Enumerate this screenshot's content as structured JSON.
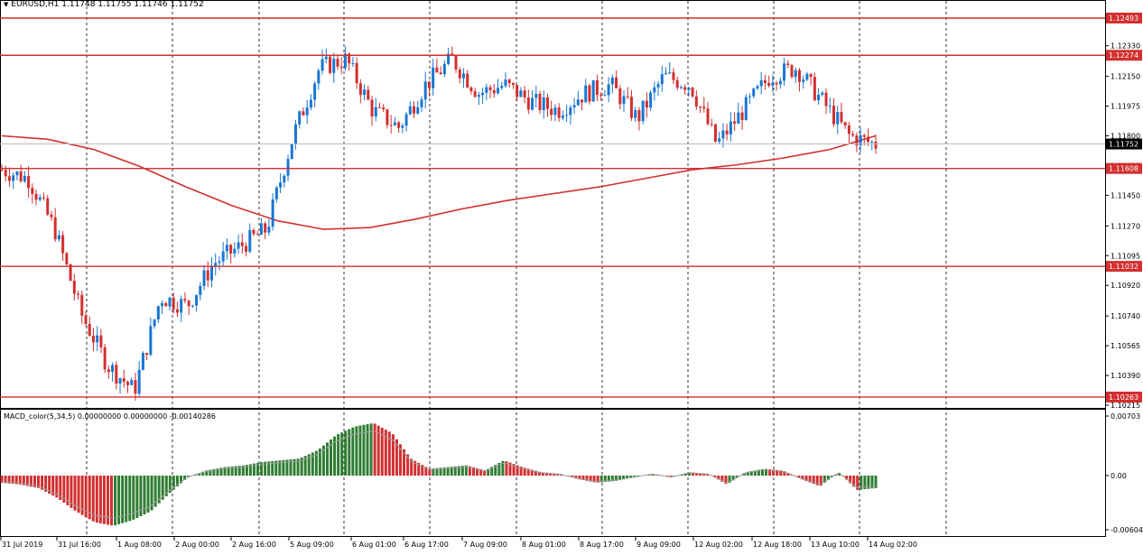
{
  "header": {
    "arrow": "▼",
    "symbol": "EURUSD,H1",
    "ohlc": "1.11748 1.11755 1.11746 1.11752"
  },
  "indicator_header": "MACD_color(5,34,5) 0.00000000 0.00000000 -0.00140286",
  "chart_data": [
    {
      "type": "candlestick",
      "symbol": "EURUSD",
      "timeframe": "H1",
      "ylim": [
        1.10215,
        1.12493
      ],
      "y_ticks": [
        "1.12330",
        "1.12150",
        "1.11975",
        "1.11800",
        "1.11625",
        "1.11450",
        "1.11270",
        "1.11095",
        "1.10920",
        "1.10740",
        "1.10565",
        "1.10390",
        "1.10215"
      ],
      "x_ticks": [
        "31 Jul 2019",
        "31 Jul 16:00",
        "1 Aug 08:00",
        "2 Aug 00:00",
        "2 Aug 16:00",
        "5 Aug 09:00",
        "6 Aug 01:00",
        "6 Aug 17:00",
        "7 Aug 09:00",
        "8 Aug 01:00",
        "8 Aug 17:00",
        "9 Aug 09:00",
        "12 Aug 02:00",
        "12 Aug 18:00",
        "13 Aug 10:00",
        "14 Aug 02:00"
      ],
      "horizontal_levels": [
        {
          "value": 1.12493,
          "label": "1.12493"
        },
        {
          "value": 1.12274,
          "label": "1.12274"
        },
        {
          "value": 1.11608,
          "label": "1.11608"
        },
        {
          "value": 1.11032,
          "label": "1.11032"
        },
        {
          "value": 1.10263,
          "label": "1.10263"
        }
      ],
      "current_price": {
        "value": 1.11752,
        "label": "1.11752"
      },
      "moving_average_path": [
        1.118,
        1.1178,
        1.1172,
        1.1162,
        1.115,
        1.1139,
        1.113,
        1.1125,
        1.1126,
        1.1131,
        1.1137,
        1.1142,
        1.1146,
        1.115,
        1.1155,
        1.116,
        1.1163,
        1.1167,
        1.1172,
        1.118
      ],
      "close_path": [
        1.116,
        1.1155,
        1.1125,
        1.1075,
        1.1045,
        1.103,
        1.1085,
        1.108,
        1.1105,
        1.1115,
        1.1125,
        1.118,
        1.122,
        1.1225,
        1.1195,
        1.1185,
        1.121,
        1.1225,
        1.1205,
        1.121,
        1.12,
        1.1195,
        1.1205,
        1.121,
        1.119,
        1.1215,
        1.121,
        1.1175,
        1.1195,
        1.1215,
        1.122,
        1.12,
        1.118,
        1.1175
      ]
    },
    {
      "type": "bar",
      "name": "MACD_color(5,34,5)",
      "ylim": [
        -0.00604,
        0.00703
      ],
      "y_ticks": [
        "0.00703",
        "0.00",
        "-0.00604"
      ],
      "histogram": [
        -0.0008,
        -0.001,
        -0.0014,
        -0.0025,
        -0.004,
        -0.0052,
        -0.0056,
        -0.005,
        -0.004,
        -0.002,
        -0.0002,
        0.0006,
        0.001,
        0.0012,
        0.0016,
        0.0018,
        0.002,
        0.003,
        0.0048,
        0.0058,
        0.0062,
        0.005,
        0.002,
        0.0008,
        0.001,
        0.0012,
        0.0006,
        0.0018,
        0.001,
        0.0004,
        0.0002,
        -0.0004,
        -0.0008,
        -0.0006,
        -0.0002,
        0.0002,
        -0.0002,
        0.0004,
        0.0002,
        -0.001,
        0.0004,
        0.0008,
        0.0006,
        -0.0004,
        -0.0012,
        0.0004,
        -0.0016,
        -0.0014
      ]
    }
  ]
}
